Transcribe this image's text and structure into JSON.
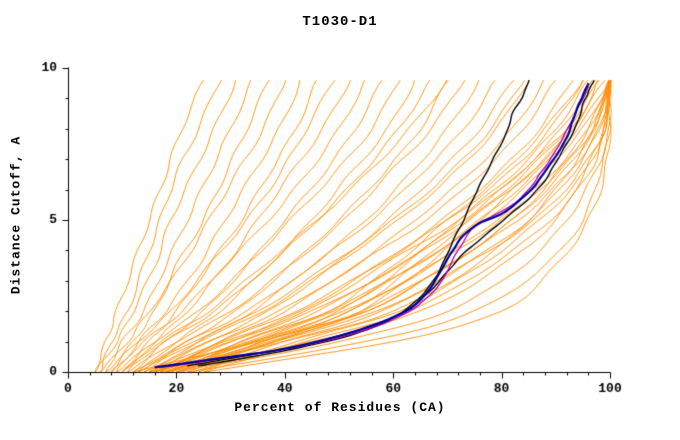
{
  "chart_data": {
    "type": "line",
    "title": "T1030-D1",
    "xlabel": "Percent of Residues (CA)",
    "ylabel": "Distance Cutoff, A",
    "xlim": [
      0,
      100
    ],
    "ylim": [
      0,
      10
    ],
    "x_ticks_major": [
      0,
      20,
      40,
      60,
      80,
      100
    ],
    "x_minor_step": 4,
    "y_ticks_major": [
      0,
      5,
      10
    ],
    "y_minor_step": 1,
    "grid": false,
    "legend": "none",
    "colors": {
      "predictions": "#FF8C00",
      "highlight_blue": "#0000A0",
      "highlight_magenta": "#B000B0",
      "highlight_black": "#000000",
      "frame": "#000000",
      "background": "#FFFFFF"
    },
    "y_knots": [
      0,
      1,
      2,
      3.5,
      5,
      6.5,
      8,
      9.6
    ],
    "orange_curves_x_at_knots": [
      [
        5,
        7,
        9,
        12,
        15,
        18,
        21,
        25
      ],
      [
        6,
        8,
        11,
        14,
        17,
        20,
        24,
        28
      ],
      [
        5,
        9,
        12,
        16,
        19,
        23,
        27,
        31
      ],
      [
        7,
        10,
        14,
        18,
        22,
        26,
        30,
        34
      ],
      [
        8,
        12,
        16,
        20,
        25,
        29,
        33,
        37
      ],
      [
        6,
        11,
        15,
        21,
        26,
        31,
        36,
        40
      ],
      [
        9,
        13,
        18,
        24,
        29,
        34,
        39,
        43
      ],
      [
        10,
        15,
        20,
        26,
        32,
        37,
        42,
        46
      ],
      [
        7,
        13,
        19,
        26,
        33,
        39,
        44,
        49
      ],
      [
        11,
        16,
        22,
        29,
        35,
        41,
        47,
        52
      ],
      [
        8,
        14,
        21,
        29,
        37,
        44,
        50,
        55
      ],
      [
        12,
        18,
        25,
        33,
        40,
        47,
        53,
        58
      ],
      [
        9,
        16,
        24,
        33,
        41,
        49,
        56,
        61
      ],
      [
        13,
        20,
        28,
        37,
        45,
        52,
        59,
        64
      ],
      [
        10,
        18,
        27,
        37,
        46,
        54,
        61,
        67
      ],
      [
        14,
        22,
        31,
        41,
        50,
        58,
        65,
        70
      ],
      [
        11,
        20,
        30,
        41,
        51,
        59,
        67,
        73
      ],
      [
        15,
        24,
        34,
        45,
        55,
        63,
        70,
        76
      ],
      [
        12,
        22,
        33,
        45,
        56,
        65,
        73,
        79
      ],
      [
        16,
        26,
        37,
        49,
        59,
        68,
        76,
        82
      ],
      [
        13,
        24,
        36,
        49,
        61,
        71,
        79,
        85
      ],
      [
        17,
        28,
        40,
        53,
        64,
        74,
        82,
        88
      ],
      [
        14,
        26,
        39,
        53,
        66,
        76,
        84,
        90
      ],
      [
        18,
        30,
        43,
        57,
        69,
        79,
        87,
        93
      ],
      [
        15,
        28,
        42,
        57,
        70,
        81,
        89,
        95
      ],
      [
        19,
        32,
        46,
        61,
        73,
        83,
        91,
        97
      ],
      [
        16,
        30,
        45,
        61,
        74,
        85,
        93,
        99
      ],
      [
        20,
        34,
        49,
        64,
        76,
        86,
        94,
        100
      ],
      [
        17,
        32,
        48,
        64,
        77,
        87,
        95,
        100
      ],
      [
        21,
        36,
        52,
        67,
        79,
        89,
        96,
        100
      ],
      [
        18,
        34,
        51,
        67,
        80,
        90,
        97,
        100
      ],
      [
        22,
        38,
        55,
        70,
        82,
        91,
        97,
        100
      ],
      [
        19,
        36,
        54,
        70,
        83,
        92,
        98,
        100
      ],
      [
        23,
        40,
        58,
        73,
        85,
        93,
        98,
        100
      ],
      [
        20,
        38,
        57,
        73,
        86,
        94,
        99,
        100
      ],
      [
        24,
        42,
        61,
        76,
        87,
        95,
        99,
        100
      ],
      [
        25,
        44,
        63,
        78,
        89,
        96,
        99,
        100
      ],
      [
        16,
        29,
        44,
        58,
        72,
        83,
        92,
        98
      ],
      [
        13,
        23,
        35,
        48,
        60,
        70,
        78,
        84
      ],
      [
        10,
        17,
        26,
        36,
        46,
        55,
        63,
        70
      ],
      [
        15,
        40,
        60,
        75,
        85,
        92,
        97,
        100
      ],
      [
        18,
        45,
        65,
        80,
        90,
        95,
        99,
        100
      ],
      [
        12,
        35,
        55,
        70,
        82,
        90,
        96,
        100
      ],
      [
        20,
        50,
        70,
        84,
        92,
        97,
        100,
        100
      ],
      [
        16,
        35,
        50,
        62,
        72,
        82,
        90,
        96
      ],
      [
        17,
        37,
        52,
        64,
        74,
        84,
        92,
        97
      ],
      [
        15,
        33,
        48,
        60,
        70,
        80,
        88,
        95
      ],
      [
        18,
        38,
        54,
        66,
        76,
        85,
        93,
        98
      ],
      [
        22,
        55,
        75,
        88,
        95,
        98,
        100,
        100
      ],
      [
        25,
        60,
        80,
        90,
        96,
        99,
        100,
        100
      ]
    ],
    "black_curves": [
      [
        [
          22,
          0.2
        ],
        [
          30,
          0.45
        ],
        [
          38,
          0.7
        ],
        [
          46,
          1.0
        ],
        [
          54,
          1.4
        ],
        [
          60,
          1.8
        ],
        [
          64,
          2.3
        ],
        [
          67,
          2.9
        ],
        [
          69,
          3.5
        ],
        [
          71,
          4.3
        ],
        [
          73,
          5.0
        ],
        [
          75,
          5.8
        ],
        [
          77,
          6.5
        ],
        [
          79,
          7.2
        ],
        [
          81,
          7.9
        ],
        [
          82,
          8.5
        ],
        [
          84,
          9.1
        ],
        [
          85,
          9.6
        ]
      ],
      [
        [
          24,
          0.2
        ],
        [
          34,
          0.5
        ],
        [
          44,
          0.85
        ],
        [
          52,
          1.2
        ],
        [
          58,
          1.6
        ],
        [
          63,
          2.1
        ],
        [
          67,
          2.7
        ],
        [
          70,
          3.3
        ],
        [
          73,
          3.9
        ],
        [
          77,
          4.5
        ],
        [
          81,
          5.1
        ],
        [
          85,
          5.7
        ],
        [
          88,
          6.3
        ],
        [
          90,
          6.9
        ],
        [
          92,
          7.5
        ],
        [
          94,
          8.2
        ],
        [
          95,
          8.8
        ],
        [
          96,
          9.2
        ],
        [
          97,
          9.6
        ]
      ]
    ],
    "blue_curve": [
      [
        16,
        0.15
      ],
      [
        22,
        0.3
      ],
      [
        30,
        0.5
      ],
      [
        38,
        0.7
      ],
      [
        46,
        1.0
      ],
      [
        54,
        1.4
      ],
      [
        60,
        1.8
      ],
      [
        64,
        2.2
      ],
      [
        67,
        2.8
      ],
      [
        69,
        3.4
      ],
      [
        71,
        4.0
      ],
      [
        73,
        4.5
      ],
      [
        76,
        4.9
      ],
      [
        80,
        5.2
      ],
      [
        83,
        5.6
      ],
      [
        86,
        6.1
      ],
      [
        88,
        6.6
      ],
      [
        90,
        7.1
      ],
      [
        92,
        7.7
      ],
      [
        93,
        8.2
      ],
      [
        94,
        8.7
      ],
      [
        95,
        9.1
      ],
      [
        96,
        9.5
      ]
    ],
    "magenta_curve": [
      [
        17,
        0.15
      ],
      [
        24,
        0.32
      ],
      [
        32,
        0.55
      ],
      [
        40,
        0.75
      ],
      [
        48,
        1.05
      ],
      [
        56,
        1.45
      ],
      [
        62,
        1.9
      ],
      [
        66,
        2.4
      ],
      [
        69,
        3.0
      ],
      [
        71,
        3.7
      ],
      [
        73,
        4.3
      ],
      [
        75,
        4.8
      ],
      [
        78,
        5.1
      ],
      [
        82,
        5.5
      ],
      [
        85,
        6.0
      ],
      [
        87,
        6.5
      ],
      [
        89,
        7.0
      ],
      [
        91,
        7.6
      ],
      [
        93,
        8.3
      ],
      [
        95,
        9.0
      ],
      [
        96,
        9.4
      ]
    ]
  }
}
